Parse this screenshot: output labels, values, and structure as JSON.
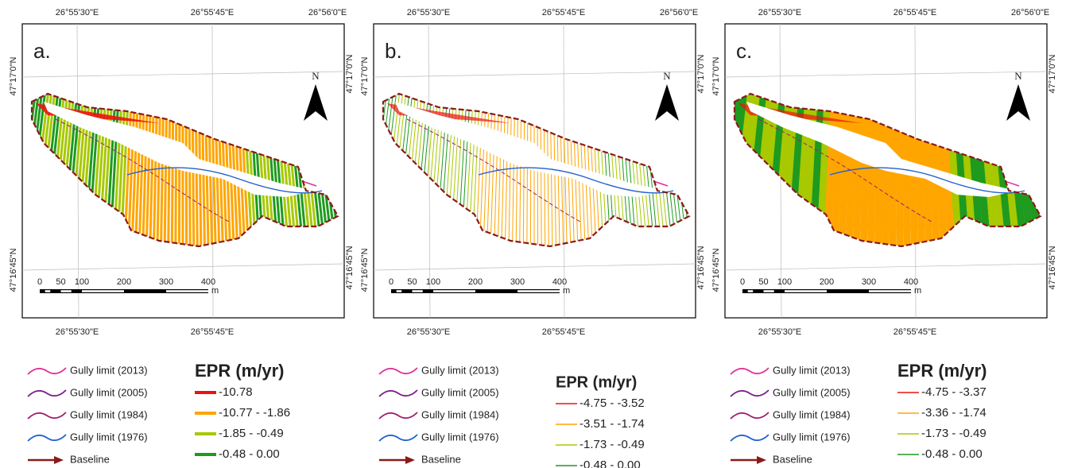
{
  "panels": [
    {
      "label": "a.",
      "top_lon": [
        "26°55'30\"E",
        "26°55'45\"E",
        "26°56'0\"E"
      ],
      "bottom_lon": [
        "26°55'30\"E",
        "26°55'45\"E"
      ],
      "left_lat": [
        "47°17'0\"N",
        "47°16'45\"N"
      ],
      "right_lat": [
        "47°17'0\"N",
        "47°16'45\"N"
      ],
      "north": "N",
      "scale": [
        "0",
        "50",
        "100",
        "200",
        "300",
        "400"
      ],
      "scale_unit": "m",
      "legend": {
        "lines": [
          "Gully limit (2013)",
          "Gully limit (2005)",
          "Gully limit (1984)",
          "Gully limit (1976)",
          "Baseline"
        ],
        "title": "EPR (m/yr)",
        "classes": [
          {
            "label": "-10.78",
            "color": "#ee1111"
          },
          {
            "label": "-10.77 - -1.86",
            "color": "#ffa500"
          },
          {
            "label": "-1.85 - -0.49",
            "color": "#a8c800"
          },
          {
            "label": "-0.48 - 0.00",
            "color": "#1e9a1e"
          }
        ]
      }
    },
    {
      "label": "b.",
      "top_lon": [
        "26°55'30\"E",
        "26°55'45\"E",
        "26°56'0\"E"
      ],
      "bottom_lon": [
        "26°55'30\"E",
        "26°55'45\"E"
      ],
      "left_lat": [
        "47°17'0\"N",
        "47°16'45\"N"
      ],
      "right_lat": [
        "47°17'0\"N",
        "47°16'45\"N"
      ],
      "north": "N",
      "scale": [
        "0",
        "50",
        "100",
        "200",
        "300",
        "400"
      ],
      "scale_unit": "m",
      "legend": {
        "lines": [
          "Gully limit (2013)",
          "Gully limit (2005)",
          "Gully limit (1984)",
          "Gully limit (1976)",
          "Baseline"
        ],
        "title": "EPR (m/yr)",
        "classes": [
          {
            "label": "-4.75 - -3.52",
            "color": "#ee1111"
          },
          {
            "label": "-3.51 - -1.74",
            "color": "#ffa500"
          },
          {
            "label": "-1.73 - -0.49",
            "color": "#a8c800"
          },
          {
            "label": "-0.48 - 0.00",
            "color": "#1e9a1e"
          }
        ]
      }
    },
    {
      "label": "c.",
      "top_lon": [
        "26°55'30\"E",
        "26°55'45\"E",
        "26°56'0\"E"
      ],
      "bottom_lon": [
        "26°55'30\"E",
        "26°55'45\"E"
      ],
      "left_lat": [
        "47°17'0\"N",
        "47°16'45\"N"
      ],
      "right_lat": [
        "47°17'0\"N",
        "47°16'45\"N"
      ],
      "north": "N",
      "scale": [
        "0",
        "50",
        "100",
        "200",
        "300",
        "400"
      ],
      "scale_unit": "m",
      "legend": {
        "lines": [
          "Gully limit (2013)",
          "Gully limit (2005)",
          "Gully limit (1984)",
          "Gully limit (1976)",
          "Baseline"
        ],
        "title": "EPR (m/yr)",
        "classes": [
          {
            "label": "-4.75 - -3.37",
            "color": "#ee1111"
          },
          {
            "label": "-3.36 - -1.74",
            "color": "#ffa500"
          },
          {
            "label": "-1.73 - -0.49",
            "color": "#a8c800"
          },
          {
            "label": "-0.48 - 0.00",
            "color": "#1e9a1e"
          }
        ]
      }
    }
  ]
}
